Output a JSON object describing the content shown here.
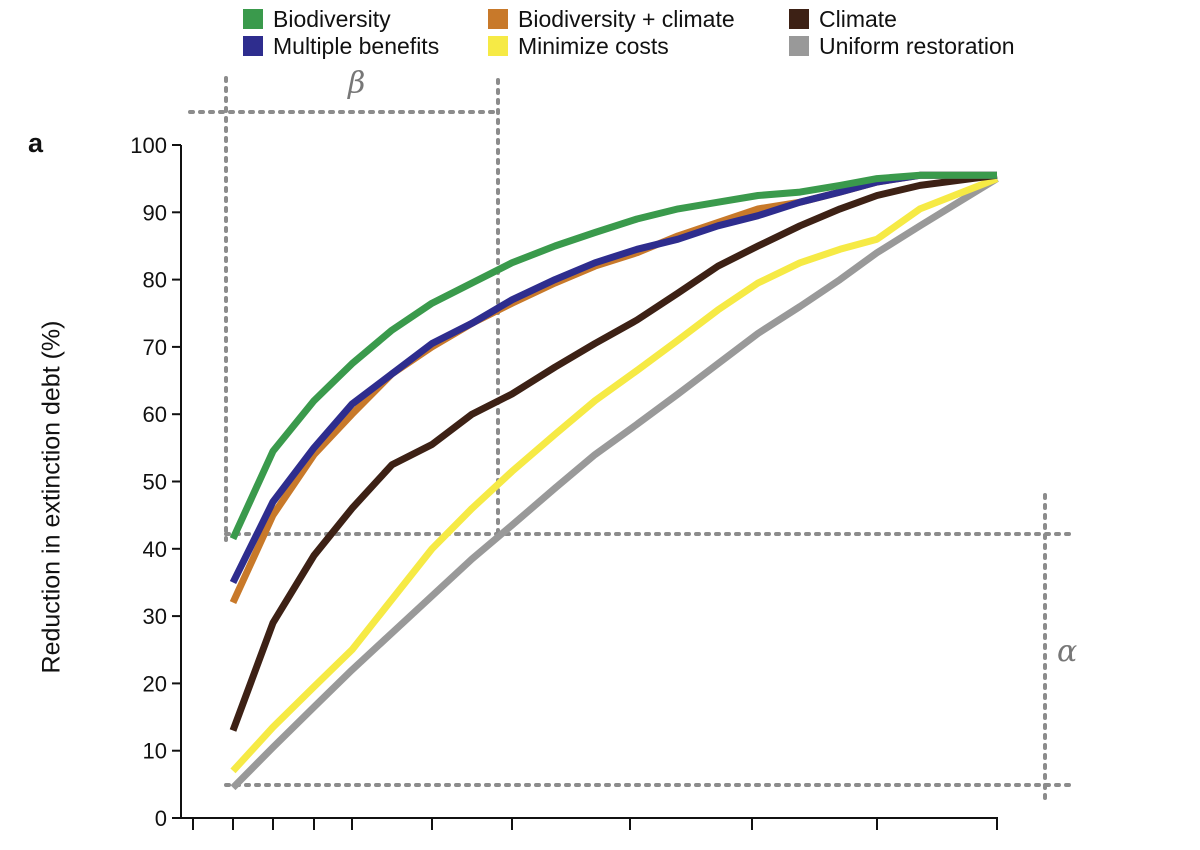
{
  "panel_label": "a",
  "annotations": {
    "beta": "β",
    "alpha": "α"
  },
  "legend": [
    {
      "label": "Biodiversity",
      "color": "#3a9a4c"
    },
    {
      "label": "Biodiversity + climate",
      "color": "#c8792a"
    },
    {
      "label": "Climate",
      "color": "#3d2115"
    },
    {
      "label": "Multiple benefits",
      "color": "#2e2d8e"
    },
    {
      "label": "Minimize costs",
      "color": "#f6ea45"
    },
    {
      "label": "Uniform restoration",
      "color": "#999999"
    }
  ],
  "chart_data": {
    "type": "line",
    "title": "",
    "xlabel": "",
    "ylabel": "Reduction in extinction debt (%)",
    "ylim": [
      0,
      100
    ],
    "y_ticks": [
      0,
      10,
      20,
      30,
      40,
      50,
      60,
      70,
      80,
      90,
      100
    ],
    "x_tick_labels_shown": false,
    "x": [
      1,
      2,
      3,
      4,
      5,
      6,
      7,
      8,
      9,
      10,
      11,
      12,
      13,
      14,
      15,
      16,
      17,
      18,
      19
    ],
    "series": [
      {
        "name": "Uniform restoration",
        "color": "#999999",
        "values": [
          4.5,
          10.5,
          16.5,
          22,
          27.5,
          33,
          38.5,
          43.5,
          49,
          54,
          58.5,
          63,
          67.5,
          72,
          76,
          80,
          84,
          88,
          95
        ]
      },
      {
        "name": "Minimize costs",
        "color": "#f6ea45",
        "values": [
          7,
          13.5,
          19.5,
          25,
          32.5,
          40,
          46,
          51.5,
          57,
          62,
          66.5,
          71,
          75.5,
          79.5,
          82.5,
          84.5,
          86,
          90.5,
          95
        ]
      },
      {
        "name": "Climate",
        "color": "#3d2115",
        "values": [
          13,
          29,
          39,
          46,
          52.5,
          55.5,
          60,
          63,
          67,
          70.5,
          74,
          78,
          82,
          85,
          88,
          90.5,
          92.5,
          94,
          95.5
        ]
      },
      {
        "name": "Biodiversity + climate",
        "color": "#c8792a",
        "values": [
          32,
          45,
          54,
          60,
          66,
          70,
          73.5,
          76.5,
          79.5,
          82,
          84,
          86.5,
          88.5,
          90.5,
          91.5,
          93,
          94.5,
          95.5,
          95.5
        ]
      },
      {
        "name": "Multiple benefits",
        "color": "#2e2d8e",
        "values": [
          35,
          47,
          55,
          61.5,
          66,
          70.5,
          73.5,
          77,
          80,
          82.5,
          84.5,
          86,
          88,
          89.5,
          91.5,
          93,
          94.5,
          95.5,
          95.5
        ]
      },
      {
        "name": "Biodiversity",
        "color": "#3a9a4c",
        "values": [
          41.5,
          54.5,
          62,
          67.5,
          72.5,
          76.5,
          79.5,
          82.5,
          85,
          87,
          89,
          90.5,
          91.5,
          92.5,
          93,
          94,
          95,
          95.5,
          95.5
        ]
      }
    ]
  }
}
